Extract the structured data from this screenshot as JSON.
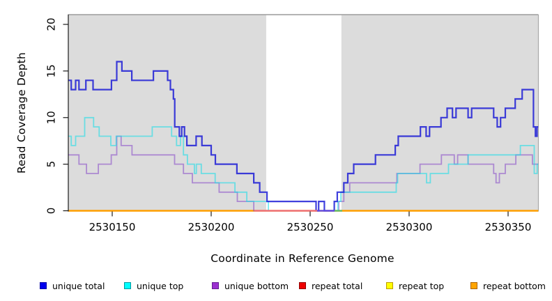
{
  "chart_data": {
    "type": "step-line",
    "title": "",
    "xlabel": "Coordinate in Reference Genome",
    "ylabel": "Read Coverage Depth",
    "x_ticks": [
      2530150,
      2530200,
      2530250,
      2530300,
      2530350
    ],
    "y_ticks": [
      0,
      5,
      10,
      15,
      20
    ],
    "x_range": [
      2530127.6,
      2530365.2
    ],
    "y_range": [
      0,
      21
    ],
    "plot_bg": "#DCDCDC",
    "grid": false,
    "no_data_region": {
      "x0": 2530227.8,
      "x1": 2530265.8,
      "color": "#FFFFFF"
    },
    "series": [
      {
        "name": "repeat total",
        "id": "repeat-total",
        "color": "#DD0000",
        "width": 2.0,
        "points": [
          [
            2530127.6,
            0
          ]
        ]
      },
      {
        "name": "repeat top",
        "id": "repeat-top",
        "color": "#F5E900",
        "width": 2.0,
        "points": [
          [
            2530127.6,
            0
          ]
        ]
      },
      {
        "name": "repeat bottom",
        "id": "repeat-bottom",
        "color": "#FF9E00",
        "width": 2.4,
        "points": [
          [
            2530127.6,
            0
          ]
        ]
      },
      {
        "name": "unique bottom",
        "id": "unique-bottom",
        "color": "rgba(128,62,200,0.52)",
        "width": 1.8,
        "points": [
          [
            2530127.6,
            6
          ],
          [
            2530133.2,
            5
          ],
          [
            2530137.0,
            4
          ],
          [
            2530143.0,
            5
          ],
          [
            2530149.5,
            6
          ],
          [
            2530152.3,
            8
          ],
          [
            2530154.5,
            7
          ],
          [
            2530160.0,
            6
          ],
          [
            2530181.5,
            5
          ],
          [
            2530186.0,
            4
          ],
          [
            2530190.5,
            3
          ],
          [
            2530204.0,
            2
          ],
          [
            2530213.2,
            1
          ],
          [
            2530221.5,
            0
          ],
          [
            2530264.5,
            1
          ],
          [
            2530267.0,
            2
          ],
          [
            2530270.0,
            3
          ],
          [
            2530293.8,
            4
          ],
          [
            2530305.5,
            5
          ],
          [
            2530316.3,
            6
          ],
          [
            2530322.8,
            5
          ],
          [
            2530324.5,
            6
          ],
          [
            2530329.8,
            5
          ],
          [
            2530342.7,
            4
          ],
          [
            2530343.9,
            3
          ],
          [
            2530345.6,
            4
          ],
          [
            2530348.6,
            5
          ],
          [
            2530353.9,
            6
          ],
          [
            2530362.3,
            5
          ]
        ]
      },
      {
        "name": "unique top",
        "id": "unique-top",
        "color": "rgba(30,222,232,0.60)",
        "width": 1.8,
        "points": [
          [
            2530127.6,
            8
          ],
          [
            2530129.3,
            7
          ],
          [
            2530131.5,
            8
          ],
          [
            2530136.1,
            10
          ],
          [
            2530140.6,
            9
          ],
          [
            2530143.4,
            8
          ],
          [
            2530149.3,
            7
          ],
          [
            2530152.0,
            8
          ],
          [
            2530170.2,
            9
          ],
          [
            2530180.0,
            8
          ],
          [
            2530182.5,
            7
          ],
          [
            2530184.5,
            8
          ],
          [
            2530186.0,
            6
          ],
          [
            2530188.0,
            5
          ],
          [
            2530191.5,
            4
          ],
          [
            2530192.5,
            5
          ],
          [
            2530195.0,
            4
          ],
          [
            2530202.0,
            3
          ],
          [
            2530212.0,
            2
          ],
          [
            2530218.0,
            1
          ],
          [
            2530228.9,
            0
          ],
          [
            2530264.0,
            1
          ],
          [
            2530265.5,
            2
          ],
          [
            2530293.5,
            3
          ],
          [
            2530294.2,
            4
          ],
          [
            2530308.8,
            3
          ],
          [
            2530310.7,
            4
          ],
          [
            2530319.9,
            5
          ],
          [
            2530329.8,
            6
          ],
          [
            2530356.2,
            7
          ],
          [
            2530363.2,
            4
          ],
          [
            2530364.7,
            5
          ]
        ]
      },
      {
        "name": "unique total",
        "id": "unique-total",
        "color": "rgba(22,22,214,0.82)",
        "width": 2.2,
        "points": [
          [
            2530127.6,
            14
          ],
          [
            2530129.3,
            13
          ],
          [
            2530131.5,
            14
          ],
          [
            2530133.2,
            13
          ],
          [
            2530136.7,
            14
          ],
          [
            2530140.3,
            13
          ],
          [
            2530149.6,
            14
          ],
          [
            2530152.3,
            16
          ],
          [
            2530154.9,
            15
          ],
          [
            2530159.9,
            14
          ],
          [
            2530170.8,
            15
          ],
          [
            2530178.0,
            14
          ],
          [
            2530179.4,
            13
          ],
          [
            2530180.9,
            12
          ],
          [
            2530181.6,
            9
          ],
          [
            2530183.9,
            8
          ],
          [
            2530185.1,
            9
          ],
          [
            2530186.5,
            8
          ],
          [
            2530187.7,
            7
          ],
          [
            2530192.4,
            8
          ],
          [
            2530195.3,
            7
          ],
          [
            2530200.0,
            6
          ],
          [
            2530202.1,
            5
          ],
          [
            2530213.0,
            4
          ],
          [
            2530221.5,
            3
          ],
          [
            2530224.5,
            2
          ],
          [
            2530228.2,
            1
          ],
          [
            2530253.0,
            0
          ],
          [
            2530254.3,
            1
          ],
          [
            2530257.2,
            0
          ],
          [
            2530262.2,
            1
          ],
          [
            2530263.7,
            2
          ],
          [
            2530267.0,
            3
          ],
          [
            2530269.0,
            4
          ],
          [
            2530272.0,
            5
          ],
          [
            2530283.0,
            6
          ],
          [
            2530293.0,
            7
          ],
          [
            2530294.5,
            8
          ],
          [
            2530305.7,
            9
          ],
          [
            2530308.6,
            8
          ],
          [
            2530310.3,
            9
          ],
          [
            2530316.1,
            10
          ],
          [
            2530319.2,
            11
          ],
          [
            2530321.9,
            10
          ],
          [
            2530323.7,
            11
          ],
          [
            2530329.8,
            10
          ],
          [
            2530331.6,
            11
          ],
          [
            2530342.7,
            10
          ],
          [
            2530344.5,
            9
          ],
          [
            2530346.2,
            10
          ],
          [
            2530348.6,
            11
          ],
          [
            2530353.6,
            12
          ],
          [
            2530357.1,
            13
          ],
          [
            2530362.8,
            9
          ],
          [
            2530363.8,
            8
          ],
          [
            2530364.6,
            9
          ]
        ]
      }
    ],
    "baseline_overlaps": [
      {
        "x0": 2530221.8,
        "x1": 2530253.6,
        "color": "#EC6E83",
        "width": 2.2
      },
      {
        "x0": 2530253.6,
        "x1": 2530262.3,
        "color": "#5A4AF0",
        "width": 2.2
      },
      {
        "x0": 2530262.3,
        "x1": 2530266.2,
        "color": "#58BE6E",
        "width": 2.2
      }
    ],
    "legend": [
      {
        "label": "unique total",
        "fill": "#0000EE",
        "border": "#0000A8"
      },
      {
        "label": "unique top",
        "fill": "#00FFFF",
        "border": "#00989E"
      },
      {
        "label": "unique bottom",
        "fill": "#9B30D0",
        "border": "#641F92"
      },
      {
        "label": "repeat total",
        "fill": "#EE0000",
        "border": "#8F0000"
      },
      {
        "label": "repeat top",
        "fill": "#FFFF00",
        "border": "#BC9A00"
      },
      {
        "label": "repeat bottom",
        "fill": "#FFA500",
        "border": "#AA6200"
      }
    ]
  }
}
